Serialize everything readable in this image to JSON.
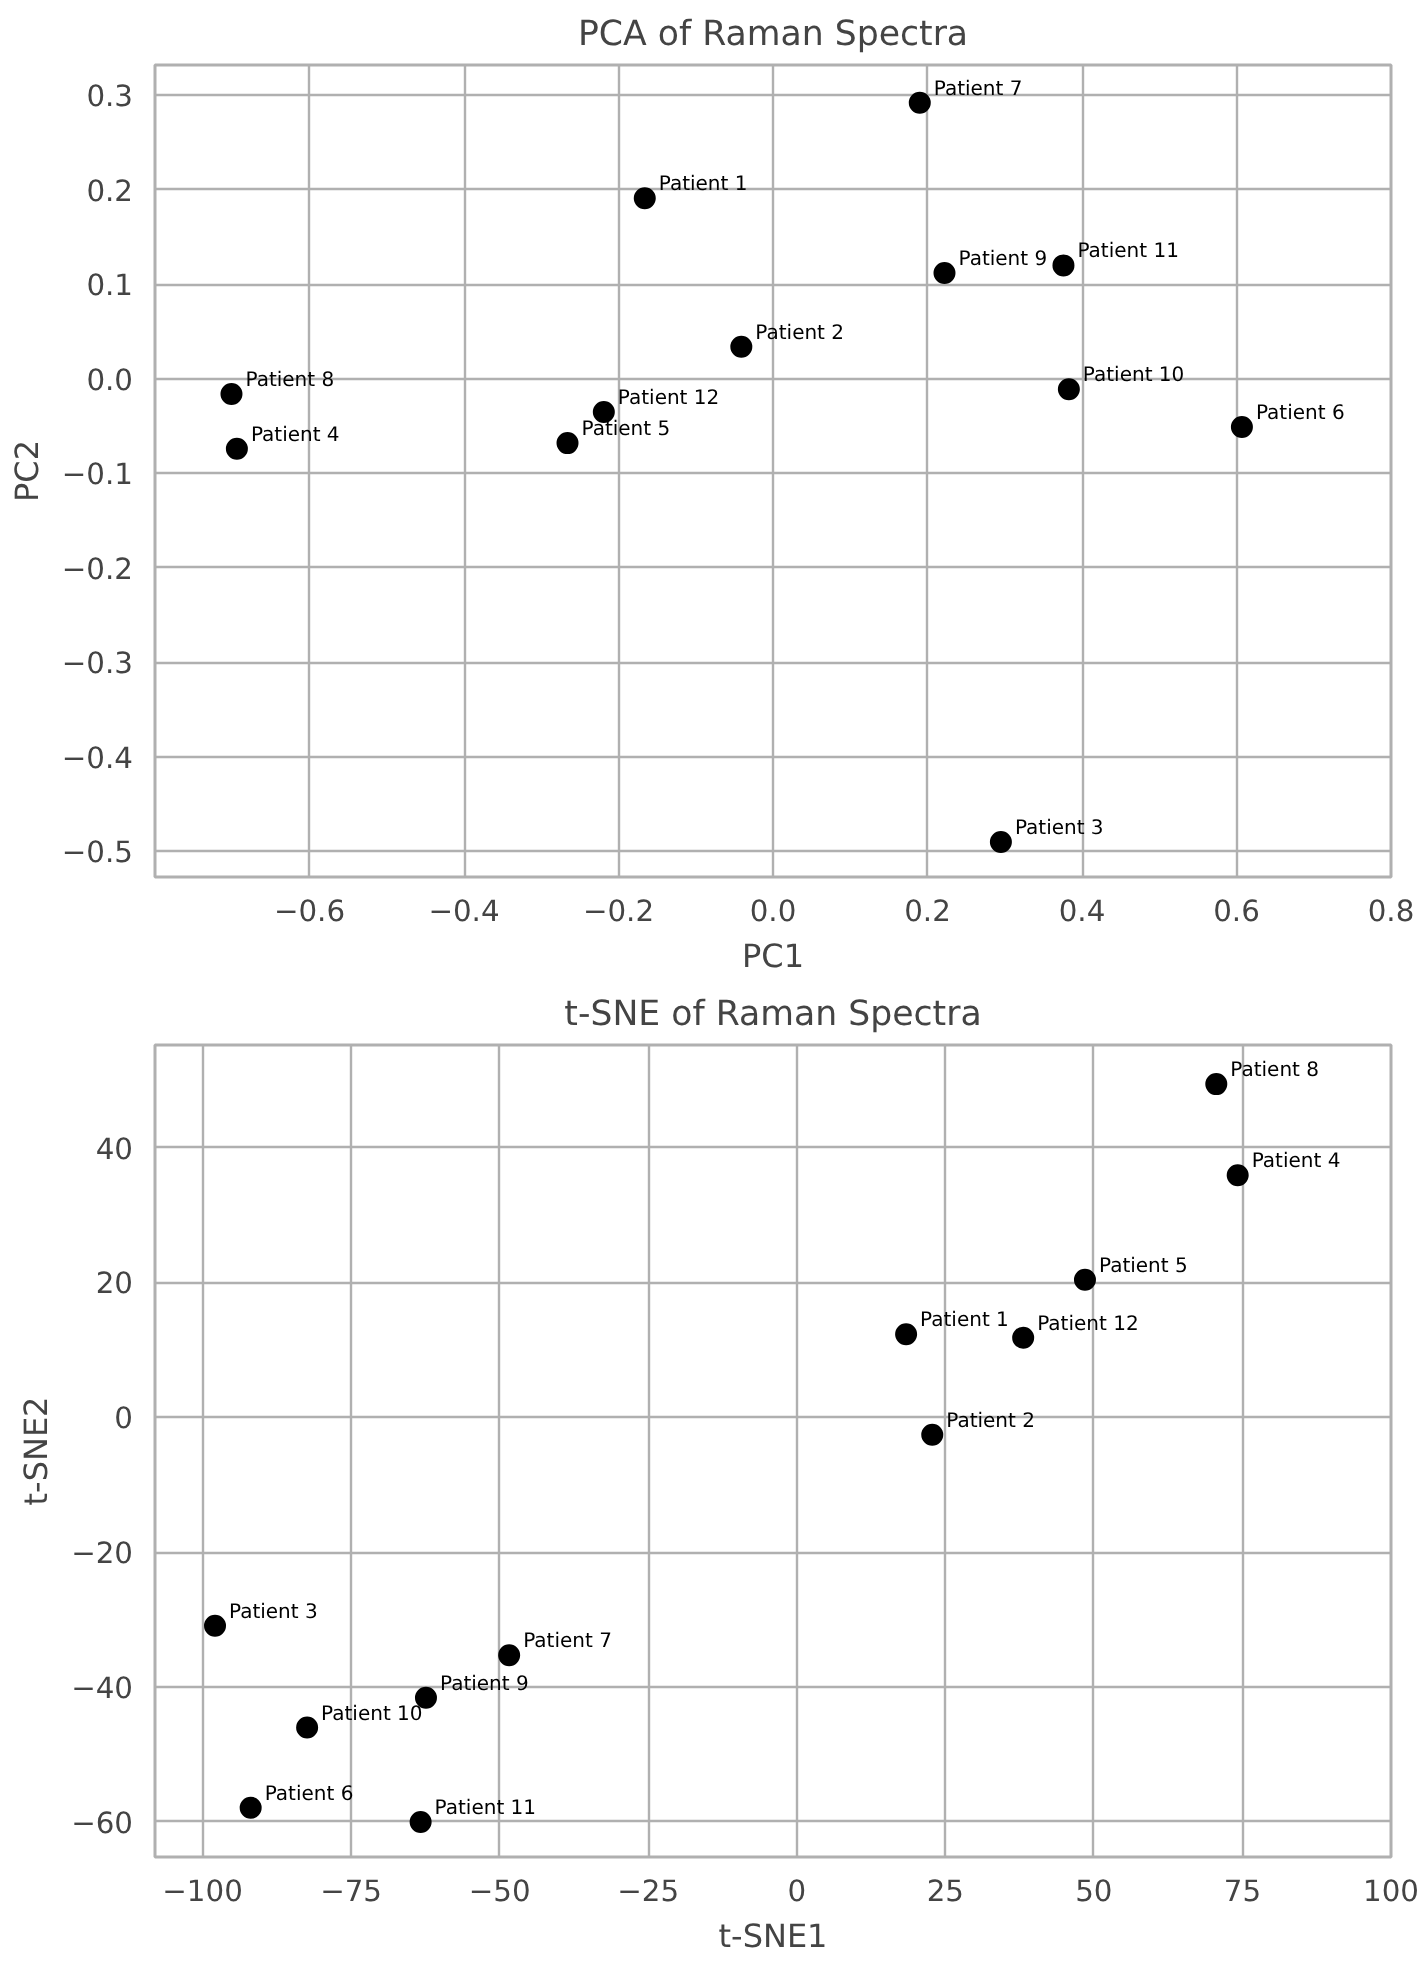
{
  "chart_data": [
    {
      "type": "scatter",
      "title": "PCA of Raman Spectra",
      "xlabel": "PC1",
      "ylabel": "PC2",
      "x": [
        -0.166,
        -0.041,
        0.295,
        -0.694,
        -0.266,
        0.607,
        0.19,
        -0.701,
        0.222,
        0.383,
        0.376,
        -0.219
      ],
      "series": [
        {
          "color": "#000000",
          "values": [
            0.191,
            0.034,
            -0.49,
            -0.074,
            -0.068,
            -0.051,
            0.292,
            -0.016,
            0.112,
            -0.011,
            0.12,
            -0.035
          ]
        }
      ],
      "annotations": [
        {
          "text": "Patient 1",
          "x": -0.166,
          "y": 0.191
        },
        {
          "text": "Patient 2",
          "x": -0.041,
          "y": 0.034
        },
        {
          "text": "Patient 3",
          "x": 0.295,
          "y": -0.49
        },
        {
          "text": "Patient 4",
          "x": -0.694,
          "y": -0.074
        },
        {
          "text": "Patient 5",
          "x": -0.266,
          "y": -0.068
        },
        {
          "text": "Patient 6",
          "x": 0.607,
          "y": -0.051
        },
        {
          "text": "Patient 7",
          "x": 0.19,
          "y": 0.292
        },
        {
          "text": "Patient 8",
          "x": -0.701,
          "y": -0.016
        },
        {
          "text": "Patient 9",
          "x": 0.222,
          "y": 0.112
        },
        {
          "text": "Patient 10",
          "x": 0.383,
          "y": -0.011
        },
        {
          "text": "Patient 11",
          "x": 0.376,
          "y": 0.12
        },
        {
          "text": "Patient 12",
          "x": -0.219,
          "y": -0.035
        }
      ],
      "xlim": [
        -0.8,
        0.8
      ],
      "ylim": [
        -0.527,
        0.332
      ],
      "xticks": [
        -0.6,
        -0.4,
        -0.2,
        {
          "value": 0,
          "label": "0.0"
        },
        0.2,
        0.4,
        0.6,
        0.8
      ],
      "yticks": [
        -0.5,
        -0.4,
        -0.3,
        -0.2,
        -0.1,
        {
          "value": 0,
          "label": "0.0"
        },
        0.1,
        0.2,
        0.3
      ],
      "grid": true,
      "marker": "circle"
    },
    {
      "type": "scatter",
      "title": "t-SNE of Raman Spectra",
      "xlabel": "t-SNE1",
      "ylabel": "t-SNE2",
      "x": [
        18.4,
        22.8,
        -97.9,
        74.2,
        48.5,
        -91.9,
        -48.4,
        70.6,
        -62.4,
        -82.4,
        -63.3,
        38.1
      ],
      "series": [
        {
          "color": "#000000",
          "values": [
            12.3,
            -2.6,
            -30.9,
            35.9,
            20.4,
            -57.9,
            -35.3,
            49.4,
            -41.6,
            -46.0,
            -60.0,
            11.8
          ]
        }
      ],
      "annotations": [
        {
          "text": "Patient 1",
          "x": 18.4,
          "y": 12.3
        },
        {
          "text": "Patient 2",
          "x": 22.8,
          "y": -2.6
        },
        {
          "text": "Patient 3",
          "x": -97.9,
          "y": -30.9
        },
        {
          "text": "Patient 4",
          "x": 74.2,
          "y": 35.9
        },
        {
          "text": "Patient 5",
          "x": 48.5,
          "y": 20.4
        },
        {
          "text": "Patient 6",
          "x": -91.9,
          "y": -57.9
        },
        {
          "text": "Patient 7",
          "x": -48.4,
          "y": -35.3
        },
        {
          "text": "Patient 8",
          "x": 70.6,
          "y": 49.4
        },
        {
          "text": "Patient 9",
          "x": -62.4,
          "y": -41.6
        },
        {
          "text": "Patient 10",
          "x": -82.4,
          "y": -46.0
        },
        {
          "text": "Patient 11",
          "x": -63.3,
          "y": -60.0
        },
        {
          "text": "Patient 12",
          "x": 38.1,
          "y": 11.8
        }
      ],
      "xlim": [
        -108,
        100
      ],
      "ylim": [
        -65.2,
        55.2
      ],
      "xticks": [
        -100,
        -75,
        -50,
        -25,
        0,
        25,
        50,
        75,
        100
      ],
      "yticks": [
        -60,
        -40,
        -20,
        0,
        20,
        40
      ],
      "grid": true,
      "marker": "circle"
    }
  ]
}
